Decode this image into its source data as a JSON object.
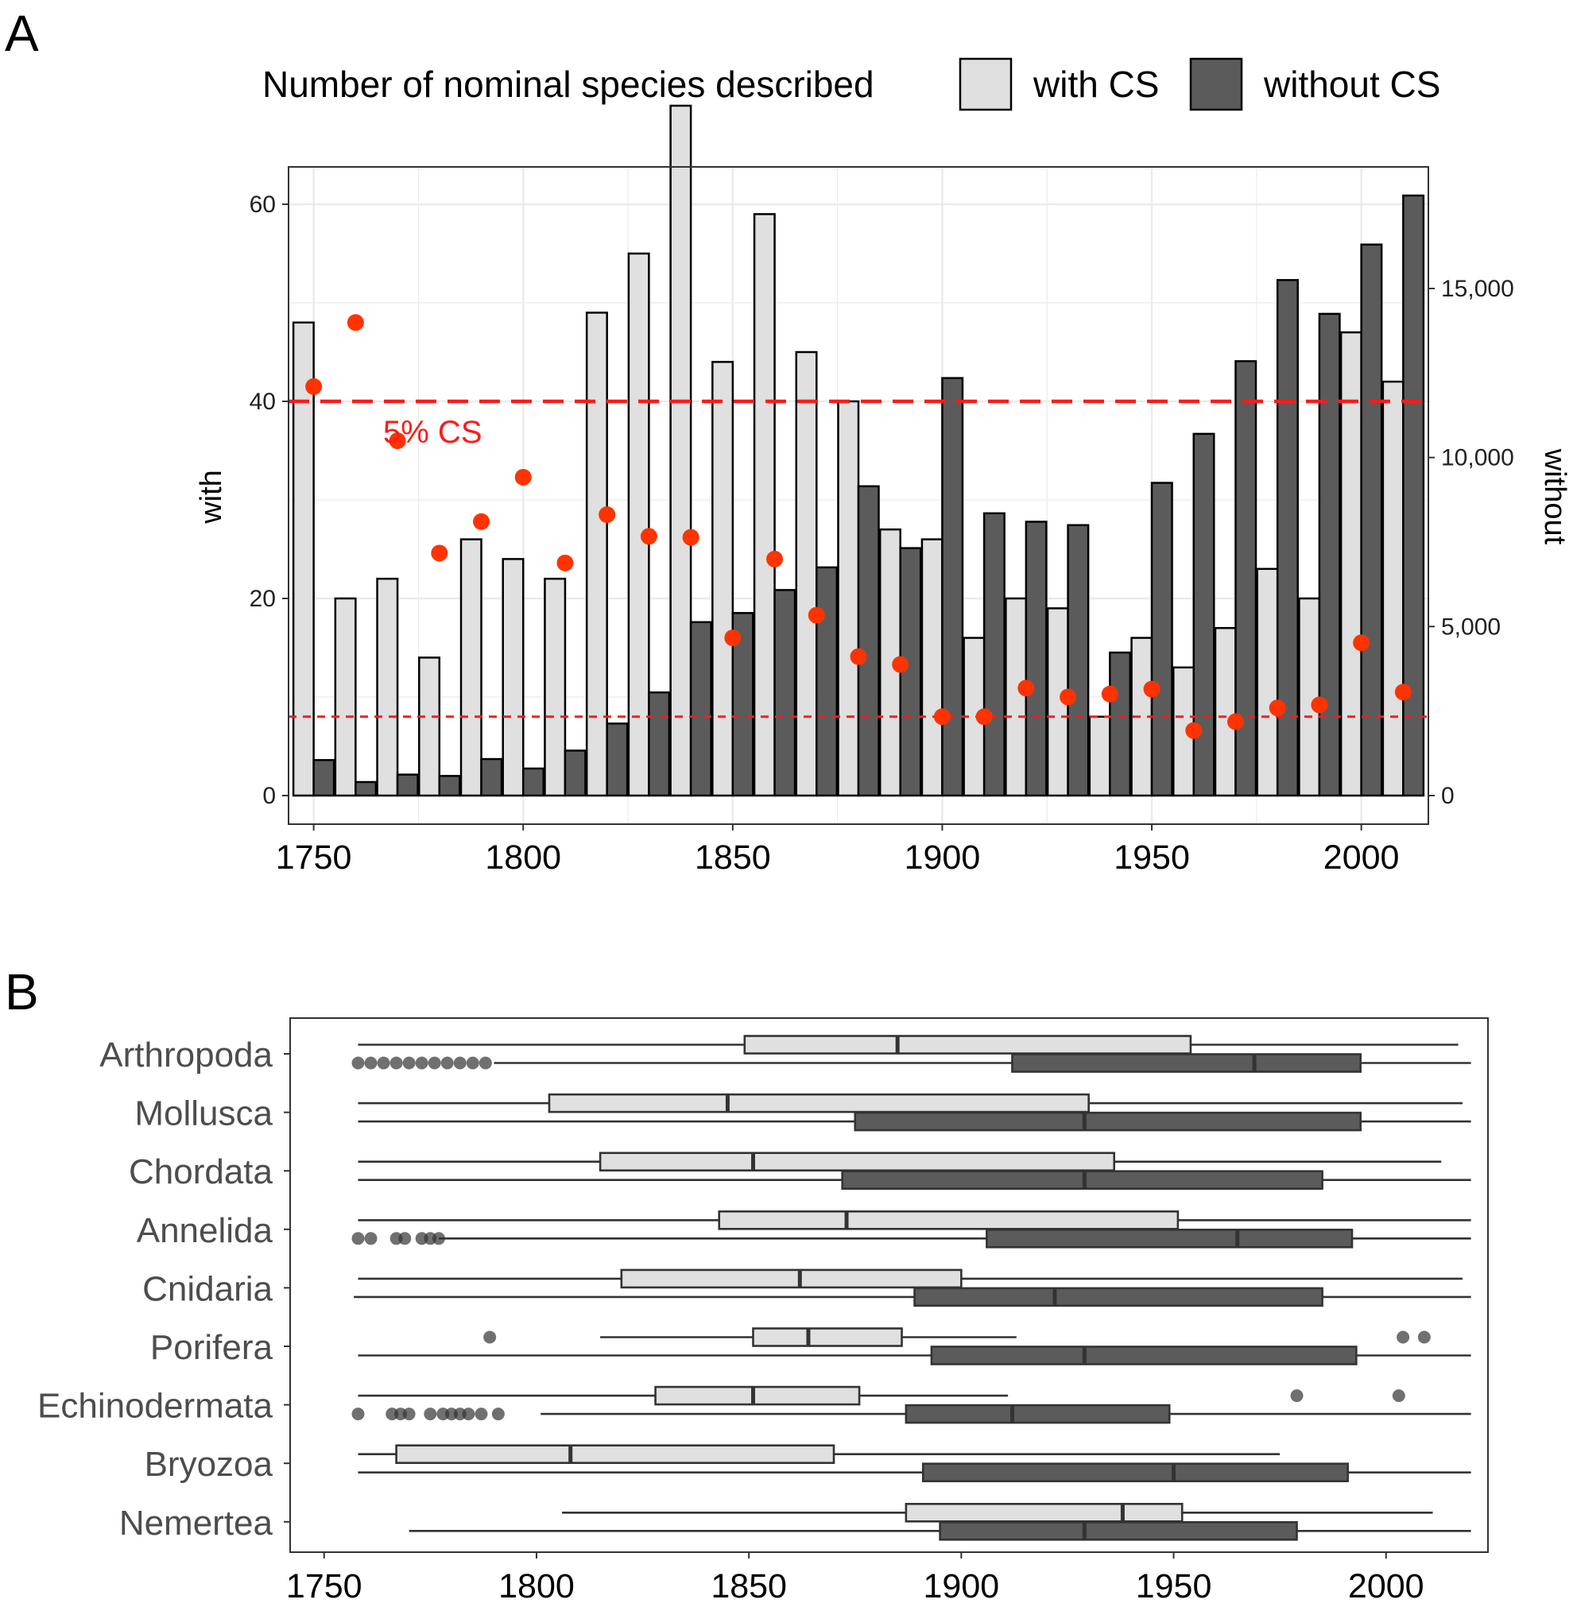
{
  "colors": {
    "with_fill": "#e0e0e0",
    "without_fill": "#5b5b5b",
    "points": "#ff3300",
    "ref_lines": "#ff1a1a",
    "grid": "#ebebeb"
  },
  "panel_a": {
    "letter": "A",
    "legend_title": "Number of nominal species described",
    "legend_with": "with CS",
    "legend_without": "without CS",
    "left_axis_title": "with",
    "right_axis_title": "without",
    "annotation": "5% CS",
    "left_ticks": [
      "0",
      "20",
      "40",
      "60"
    ],
    "right_ticks": [
      "0",
      "5,000",
      "10,000",
      "15,000"
    ],
    "x_ticks": [
      "1750",
      "1800",
      "1850",
      "1900",
      "1950",
      "2000"
    ]
  },
  "panel_b": {
    "letter": "B",
    "x_ticks": [
      "1750",
      "1800",
      "1850",
      "1900",
      "1950",
      "2000"
    ]
  },
  "chart_data": [
    {
      "type": "bar",
      "panel": "A",
      "legend_placement": "top",
      "grid": true,
      "x": [
        1750,
        1760,
        1770,
        1780,
        1790,
        1800,
        1810,
        1820,
        1830,
        1840,
        1850,
        1860,
        1870,
        1880,
        1890,
        1900,
        1910,
        1920,
        1930,
        1940,
        1950,
        1960,
        1970,
        1980,
        1990,
        2000,
        2010
      ],
      "xlim": [
        1744,
        2016
      ],
      "series": [
        {
          "name": "with CS",
          "axis": "left",
          "ylim": [
            0,
            70
          ],
          "values": [
            48,
            20,
            22,
            14,
            26,
            24,
            22,
            49,
            55,
            70,
            44,
            59,
            45,
            40,
            27,
            26,
            16,
            20,
            19,
            8,
            16,
            13,
            17,
            23,
            20,
            47,
            42
          ]
        },
        {
          "name": "without CS",
          "axis": "right",
          "ylim": [
            0,
            17800
          ],
          "values": [
            1050,
            400,
            620,
            580,
            1080,
            800,
            1330,
            2130,
            3050,
            5130,
            5400,
            6080,
            6750,
            9150,
            7320,
            12350,
            8350,
            8100,
            8000,
            4230,
            9250,
            10700,
            12850,
            15250,
            14250,
            16300,
            17750
          ]
        },
        {
          "name": "",
          "type": "scatter",
          "axis": "left",
          "values": [
            41.5,
            48,
            36,
            24.6,
            27.8,
            32.3,
            23.6,
            28.5,
            26.3,
            26.2,
            16,
            24,
            18.3,
            14.1,
            13.3,
            8,
            8,
            10.9,
            10,
            10.3,
            10.8,
            6.6,
            7.5,
            8.9,
            9.2,
            15.5,
            10.5
          ]
        }
      ],
      "reference_lines": [
        {
          "axis": "left",
          "value": 40,
          "style": "long-dash"
        },
        {
          "axis": "left",
          "value": 8,
          "style": "short-dash"
        }
      ]
    },
    {
      "type": "boxplot",
      "panel": "B",
      "xlim": [
        1742,
        2024
      ],
      "categories": [
        "Arthropoda",
        "Mollusca",
        "Chordata",
        "Annelida",
        "Cnidaria",
        "Porifera",
        "Echinodermata",
        "Bryozoa",
        "Nemertea"
      ],
      "series": [
        {
          "name": "with CS",
          "boxes": [
            {
              "min": 1758,
              "q1": 1849,
              "median": 1885,
              "q3": 1954,
              "max": 2017,
              "outliers": []
            },
            {
              "min": 1758,
              "q1": 1803,
              "median": 1845,
              "q3": 1930,
              "max": 2018,
              "outliers": []
            },
            {
              "min": 1758,
              "q1": 1815,
              "median": 1851,
              "q3": 1936,
              "max": 2013,
              "outliers": []
            },
            {
              "min": 1758,
              "q1": 1843,
              "median": 1873,
              "q3": 1951,
              "max": 2020,
              "outliers": []
            },
            {
              "min": 1758,
              "q1": 1820,
              "median": 1862,
              "q3": 1900,
              "max": 2018,
              "outliers": []
            },
            {
              "min": 1815,
              "q1": 1851,
              "median": 1864,
              "q3": 1886,
              "max": 1913,
              "outliers": [
                1789,
                2004,
                2009
              ]
            },
            {
              "min": 1758,
              "q1": 1828,
              "median": 1851,
              "q3": 1876,
              "max": 1911,
              "outliers": [
                1979,
                2003
              ]
            },
            {
              "min": 1758,
              "q1": 1767,
              "median": 1808,
              "q3": 1870,
              "max": 1975,
              "outliers": []
            },
            {
              "min": 1806,
              "q1": 1887,
              "median": 1938,
              "q3": 1952,
              "max": 2011,
              "outliers": []
            }
          ]
        },
        {
          "name": "without CS",
          "boxes": [
            {
              "min": 1790,
              "q1": 1912,
              "median": 1969,
              "q3": 1994,
              "max": 2020,
              "outliers": [
                1758,
                1761,
                1764,
                1767,
                1770,
                1773,
                1776,
                1779,
                1782,
                1785,
                1788
              ]
            },
            {
              "min": 1758,
              "q1": 1875,
              "median": 1929,
              "q3": 1994,
              "max": 2020,
              "outliers": []
            },
            {
              "min": 1758,
              "q1": 1872,
              "median": 1929,
              "q3": 1985,
              "max": 2020,
              "outliers": []
            },
            {
              "min": 1777,
              "q1": 1906,
              "median": 1965,
              "q3": 1992,
              "max": 2020,
              "outliers": [
                1758,
                1761,
                1767,
                1769,
                1773,
                1775,
                1777
              ]
            },
            {
              "min": 1757,
              "q1": 1889,
              "median": 1922,
              "q3": 1985,
              "max": 2020,
              "outliers": []
            },
            {
              "min": 1758,
              "q1": 1893,
              "median": 1929,
              "q3": 1993,
              "max": 2020,
              "outliers": []
            },
            {
              "min": 1801,
              "q1": 1887,
              "median": 1912,
              "q3": 1949,
              "max": 2020,
              "outliers": [
                1758,
                1766,
                1768,
                1770,
                1775,
                1778,
                1780,
                1782,
                1784,
                1787,
                1791
              ]
            },
            {
              "min": 1758,
              "q1": 1891,
              "median": 1950,
              "q3": 1991,
              "max": 2020,
              "outliers": []
            },
            {
              "min": 1770,
              "q1": 1895,
              "median": 1929,
              "q3": 1979,
              "max": 2020,
              "outliers": []
            }
          ]
        }
      ]
    }
  ]
}
